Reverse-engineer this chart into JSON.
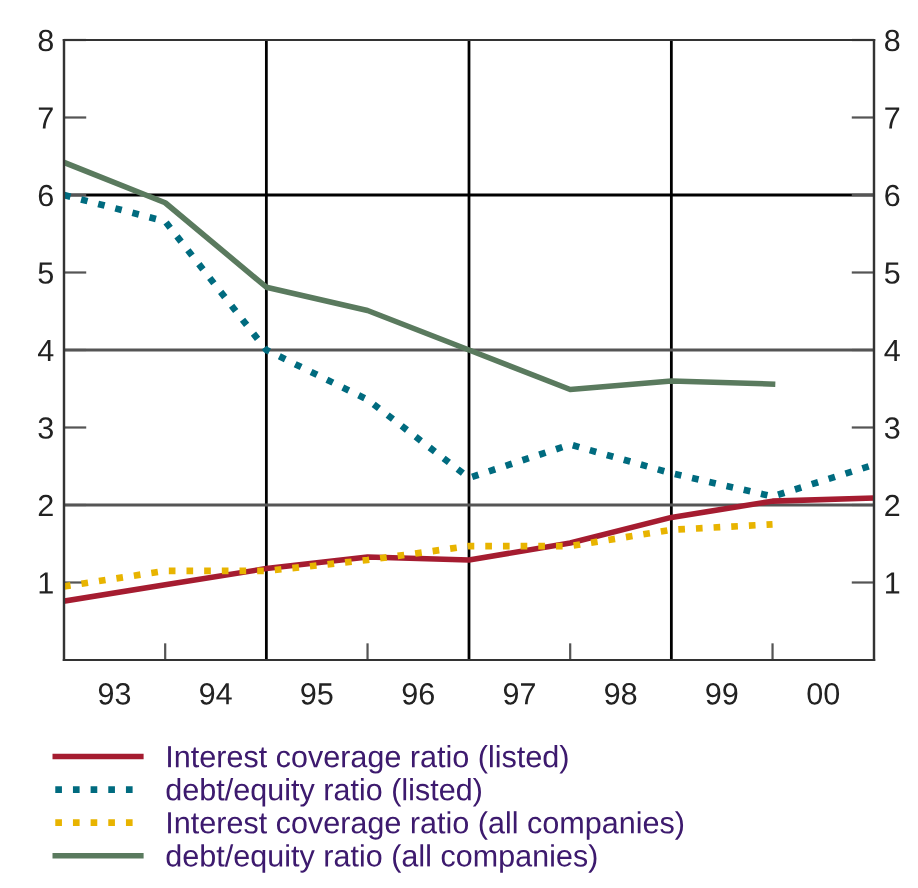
{
  "chart_data": {
    "type": "line",
    "x": [
      "1993-01-01",
      "1994-01-01",
      "1995-01-01",
      "1996-01-01",
      "1997-01-01",
      "1998-01-01",
      "1999-01-01",
      "2000-01-01",
      "2001-01-01"
    ],
    "xlim": [
      "1993-01-01",
      "2001-01-01"
    ],
    "xticks": [
      {
        "value": "1993-07-02",
        "label": "93"
      },
      {
        "value": "1994-01-01",
        "label": null
      },
      {
        "value": "1994-07-02",
        "label": "94"
      },
      {
        "value": "1995-07-02",
        "label": "95"
      },
      {
        "value": "1996-01-01",
        "label": null
      },
      {
        "value": "1996-07-02",
        "label": "96"
      },
      {
        "value": "1997-07-02",
        "label": "97"
      },
      {
        "value": "1998-01-01",
        "label": null
      },
      {
        "value": "1998-07-02",
        "label": "98"
      },
      {
        "value": "1999-07-02",
        "label": "99"
      },
      {
        "value": "2000-01-01",
        "label": null
      },
      {
        "value": "2000-07-02",
        "label": "00"
      }
    ],
    "ylim": [
      0,
      8
    ],
    "yticks": [
      1,
      2,
      3,
      4,
      5,
      6,
      7,
      8
    ],
    "y2lim": [
      0,
      8
    ],
    "y2ticks": [
      1,
      2,
      3,
      4,
      5,
      6,
      7,
      8
    ],
    "ref_lines": [
      {
        "axis": "x",
        "value": "1995-01-01",
        "color": "#000000"
      },
      {
        "axis": "x",
        "value": "1997-01-01",
        "color": "#000000"
      },
      {
        "axis": "x",
        "value": "1999-01-01",
        "color": "#000000"
      },
      {
        "axis": "y",
        "value": 2,
        "color": "#555555"
      },
      {
        "axis": "y",
        "value": 4,
        "color": "#555555"
      },
      {
        "axis": "y",
        "value": 6,
        "color": "#000000"
      }
    ],
    "legend": "bottom",
    "series": [
      {
        "name": "Interest coverage ratio (listed)",
        "color": "#a51c30",
        "line_style": "solid",
        "values": [
          0.76,
          0.97,
          1.18,
          1.33,
          1.29,
          1.51,
          1.84,
          2.05,
          2.09
        ]
      },
      {
        "name": "debt/equity ratio (listed)",
        "color": "#006b7f",
        "line_style": "dotted",
        "values": [
          6.0,
          5.66,
          4.0,
          3.36,
          2.35,
          2.78,
          2.41,
          2.11,
          2.52
        ]
      },
      {
        "name": "Interest coverage ratio (all companies)",
        "color": "#e8b400",
        "line_style": "dotted",
        "values": [
          0.95,
          1.15,
          1.15,
          1.29,
          1.47,
          1.47,
          1.68,
          1.75,
          null
        ]
      },
      {
        "name": "debt/equity ratio (all companies)",
        "color": "#5a7a5e",
        "line_style": "solid",
        "values": [
          6.42,
          5.9,
          4.81,
          4.51,
          4.0,
          3.49,
          3.6,
          3.56,
          null
        ]
      }
    ]
  }
}
